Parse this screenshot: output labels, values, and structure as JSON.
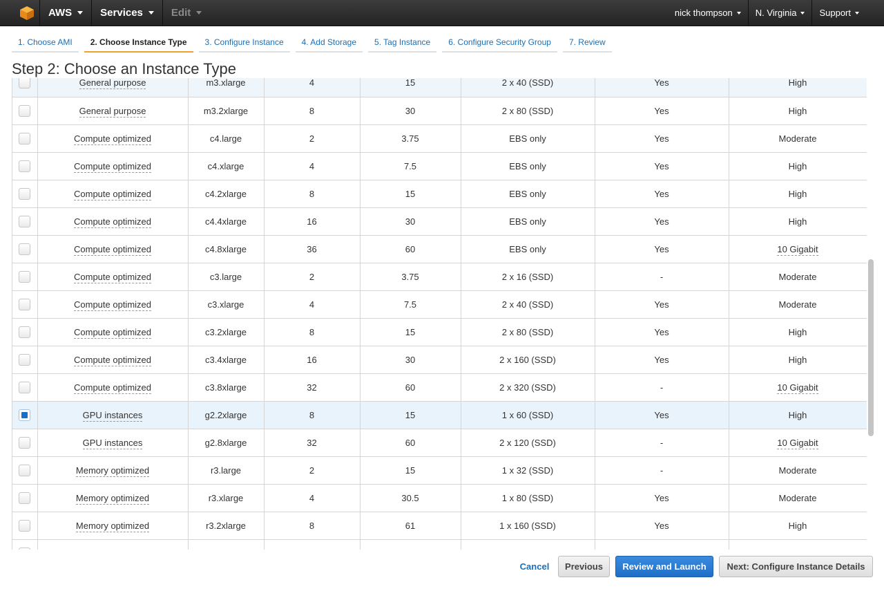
{
  "topnav": {
    "logo_icon": "aws-cube-icon",
    "brand": "AWS",
    "services": "Services",
    "edit": "Edit",
    "user": "nick thompson",
    "region": "N. Virginia",
    "support": "Support"
  },
  "steps": [
    {
      "label": "1. Choose AMI",
      "active": false
    },
    {
      "label": "2. Choose Instance Type",
      "active": true
    },
    {
      "label": "3. Configure Instance",
      "active": false
    },
    {
      "label": "4. Add Storage",
      "active": false
    },
    {
      "label": "5. Tag Instance",
      "active": false
    },
    {
      "label": "6. Configure Security Group",
      "active": false
    },
    {
      "label": "7. Review",
      "active": false
    }
  ],
  "page_title": "Step 2: Choose an Instance Type",
  "rows": [
    {
      "family": "General purpose",
      "type": "m3.xlarge",
      "vcpus": "4",
      "memory": "15",
      "storage": "2 x 40 (SSD)",
      "ebs": "Yes",
      "network": "High",
      "net_dashed": false,
      "checked": false
    },
    {
      "family": "General purpose",
      "type": "m3.2xlarge",
      "vcpus": "8",
      "memory": "30",
      "storage": "2 x 80 (SSD)",
      "ebs": "Yes",
      "network": "High",
      "net_dashed": false,
      "checked": false
    },
    {
      "family": "Compute optimized",
      "type": "c4.large",
      "vcpus": "2",
      "memory": "3.75",
      "storage": "EBS only",
      "ebs": "Yes",
      "network": "Moderate",
      "net_dashed": false,
      "checked": false
    },
    {
      "family": "Compute optimized",
      "type": "c4.xlarge",
      "vcpus": "4",
      "memory": "7.5",
      "storage": "EBS only",
      "ebs": "Yes",
      "network": "High",
      "net_dashed": false,
      "checked": false
    },
    {
      "family": "Compute optimized",
      "type": "c4.2xlarge",
      "vcpus": "8",
      "memory": "15",
      "storage": "EBS only",
      "ebs": "Yes",
      "network": "High",
      "net_dashed": false,
      "checked": false
    },
    {
      "family": "Compute optimized",
      "type": "c4.4xlarge",
      "vcpus": "16",
      "memory": "30",
      "storage": "EBS only",
      "ebs": "Yes",
      "network": "High",
      "net_dashed": false,
      "checked": false
    },
    {
      "family": "Compute optimized",
      "type": "c4.8xlarge",
      "vcpus": "36",
      "memory": "60",
      "storage": "EBS only",
      "ebs": "Yes",
      "network": "10 Gigabit",
      "net_dashed": true,
      "checked": false
    },
    {
      "family": "Compute optimized",
      "type": "c3.large",
      "vcpus": "2",
      "memory": "3.75",
      "storage": "2 x 16 (SSD)",
      "ebs": "-",
      "network": "Moderate",
      "net_dashed": false,
      "checked": false
    },
    {
      "family": "Compute optimized",
      "type": "c3.xlarge",
      "vcpus": "4",
      "memory": "7.5",
      "storage": "2 x 40 (SSD)",
      "ebs": "Yes",
      "network": "Moderate",
      "net_dashed": false,
      "checked": false
    },
    {
      "family": "Compute optimized",
      "type": "c3.2xlarge",
      "vcpus": "8",
      "memory": "15",
      "storage": "2 x 80 (SSD)",
      "ebs": "Yes",
      "network": "High",
      "net_dashed": false,
      "checked": false
    },
    {
      "family": "Compute optimized",
      "type": "c3.4xlarge",
      "vcpus": "16",
      "memory": "30",
      "storage": "2 x 160 (SSD)",
      "ebs": "Yes",
      "network": "High",
      "net_dashed": false,
      "checked": false
    },
    {
      "family": "Compute optimized",
      "type": "c3.8xlarge",
      "vcpus": "32",
      "memory": "60",
      "storage": "2 x 320 (SSD)",
      "ebs": "-",
      "network": "10 Gigabit",
      "net_dashed": true,
      "checked": false
    },
    {
      "family": "GPU instances",
      "type": "g2.2xlarge",
      "vcpus": "8",
      "memory": "15",
      "storage": "1 x 60 (SSD)",
      "ebs": "Yes",
      "network": "High",
      "net_dashed": false,
      "checked": true
    },
    {
      "family": "GPU instances",
      "type": "g2.8xlarge",
      "vcpus": "32",
      "memory": "60",
      "storage": "2 x 120 (SSD)",
      "ebs": "-",
      "network": "10 Gigabit",
      "net_dashed": true,
      "checked": false
    },
    {
      "family": "Memory optimized",
      "type": "r3.large",
      "vcpus": "2",
      "memory": "15",
      "storage": "1 x 32 (SSD)",
      "ebs": "-",
      "network": "Moderate",
      "net_dashed": false,
      "checked": false
    },
    {
      "family": "Memory optimized",
      "type": "r3.xlarge",
      "vcpus": "4",
      "memory": "30.5",
      "storage": "1 x 80 (SSD)",
      "ebs": "Yes",
      "network": "Moderate",
      "net_dashed": false,
      "checked": false
    },
    {
      "family": "Memory optimized",
      "type": "r3.2xlarge",
      "vcpus": "8",
      "memory": "61",
      "storage": "1 x 160 (SSD)",
      "ebs": "Yes",
      "network": "High",
      "net_dashed": false,
      "checked": false
    },
    {
      "family": "",
      "type": "",
      "vcpus": "",
      "memory": "",
      "storage": "",
      "ebs": "",
      "network": "",
      "net_dashed": false,
      "checked": false
    }
  ],
  "footer": {
    "cancel": "Cancel",
    "previous": "Previous",
    "review": "Review and Launch",
    "next": "Next: Configure Instance Details"
  },
  "colors": {
    "accent_blue": "#1a6fb5",
    "primary_button": "#1f6fc6",
    "active_step_underline": "#f0a030",
    "selected_row": "#e9f3fb",
    "logo_orange": "#f29b1d"
  }
}
